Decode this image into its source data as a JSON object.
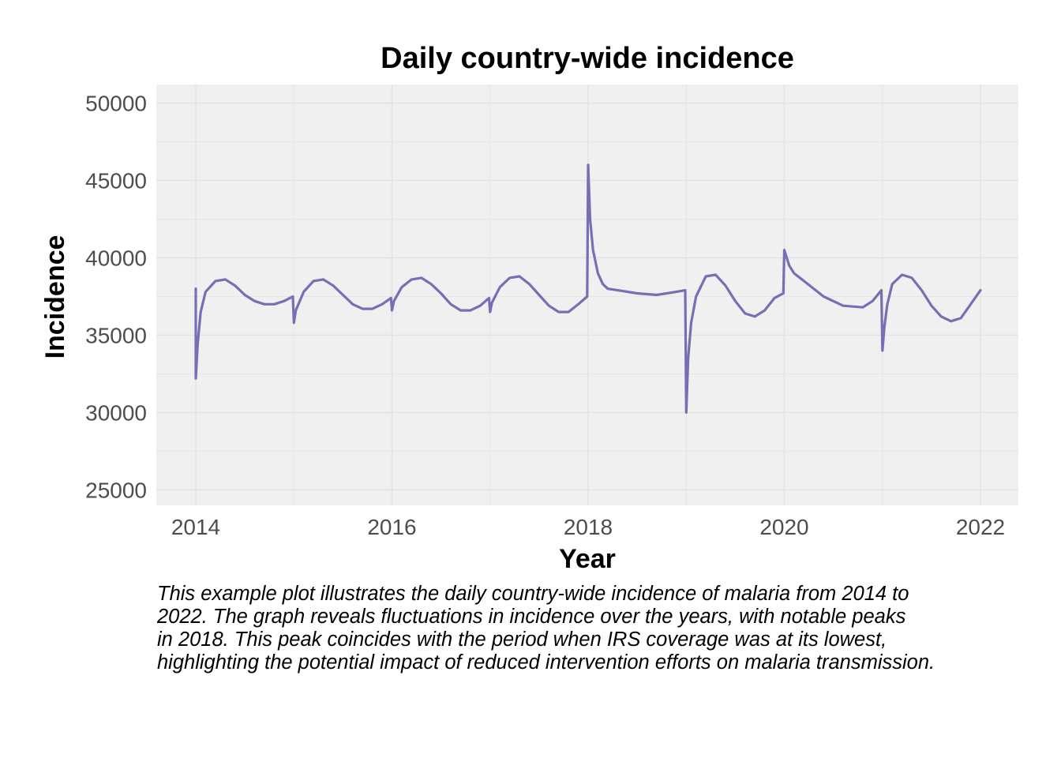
{
  "chart_data": {
    "type": "line",
    "title": "Daily country-wide incidence",
    "xlabel": "Year",
    "ylabel": "Incidence",
    "xlim": [
      2014,
      2022
    ],
    "ylim": [
      24000,
      51200
    ],
    "x_ticks": [
      2014,
      2016,
      2018,
      2020,
      2022
    ],
    "x_tick_labels": [
      "2014",
      "2016",
      "2018",
      "2020",
      "2022"
    ],
    "y_ticks": [
      25000,
      30000,
      35000,
      40000,
      45000,
      50000
    ],
    "y_tick_labels": [
      "25000",
      "30000",
      "35000",
      "40000",
      "45000",
      "50000"
    ],
    "grid": true,
    "panel_background": "#f0f0f0",
    "series": [
      {
        "color": "#7570b3",
        "x": [
          2014.0,
          2014.0,
          2014.02,
          2014.05,
          2014.1,
          2014.2,
          2014.3,
          2014.4,
          2014.5,
          2014.6,
          2014.7,
          2014.8,
          2014.9,
          2014.99,
          2015.0,
          2015.02,
          2015.1,
          2015.2,
          2015.3,
          2015.4,
          2015.5,
          2015.6,
          2015.7,
          2015.8,
          2015.9,
          2015.99,
          2016.0,
          2016.02,
          2016.1,
          2016.2,
          2016.3,
          2016.4,
          2016.5,
          2016.6,
          2016.7,
          2016.8,
          2016.9,
          2016.99,
          2017.0,
          2017.02,
          2017.1,
          2017.2,
          2017.3,
          2017.4,
          2017.5,
          2017.6,
          2017.7,
          2017.8,
          2017.9,
          2017.99,
          2018.0,
          2018.02,
          2018.05,
          2018.1,
          2018.15,
          2018.2,
          2018.3,
          2018.5,
          2018.7,
          2018.9,
          2018.99,
          2019.0,
          2019.02,
          2019.05,
          2019.1,
          2019.2,
          2019.3,
          2019.4,
          2019.5,
          2019.6,
          2019.7,
          2019.8,
          2019.9,
          2019.99,
          2020.0,
          2020.05,
          2020.1,
          2020.2,
          2020.4,
          2020.6,
          2020.8,
          2020.9,
          2020.99,
          2021.0,
          2021.02,
          2021.05,
          2021.1,
          2021.2,
          2021.3,
          2021.4,
          2021.5,
          2021.6,
          2021.7,
          2021.8,
          2021.9,
          2022.0
        ],
        "y": [
          38000,
          32200,
          34500,
          36500,
          37800,
          38500,
          38600,
          38200,
          37600,
          37200,
          37000,
          37000,
          37200,
          37500,
          35800,
          36600,
          37800,
          38500,
          38600,
          38200,
          37600,
          37000,
          36700,
          36700,
          37000,
          37400,
          36600,
          37200,
          38100,
          38600,
          38700,
          38300,
          37700,
          37000,
          36600,
          36600,
          36900,
          37400,
          36500,
          37100,
          38100,
          38700,
          38800,
          38300,
          37600,
          36900,
          36500,
          36500,
          37000,
          37500,
          46000,
          42500,
          40500,
          39000,
          38300,
          38000,
          37900,
          37700,
          37600,
          37800,
          37900,
          30000,
          33500,
          35800,
          37500,
          38800,
          38900,
          38200,
          37200,
          36400,
          36200,
          36600,
          37400,
          37700,
          40500,
          39500,
          39000,
          38500,
          37500,
          36900,
          36800,
          37200,
          37900,
          34000,
          35500,
          37000,
          38300,
          38900,
          38700,
          37900,
          36900,
          36200,
          35900,
          36100,
          37000,
          37900
        ]
      }
    ]
  },
  "caption": {
    "lines": [
      "This example plot illustrates the daily country-wide incidence of malaria from 2014 to",
      "2022. The graph reveals fluctuations in incidence over the years, with notable peaks",
      "in 2018. This peak coincides with the period when IRS coverage was at its lowest,",
      "highlighting the potential impact of reduced intervention efforts on malaria transmission."
    ]
  }
}
